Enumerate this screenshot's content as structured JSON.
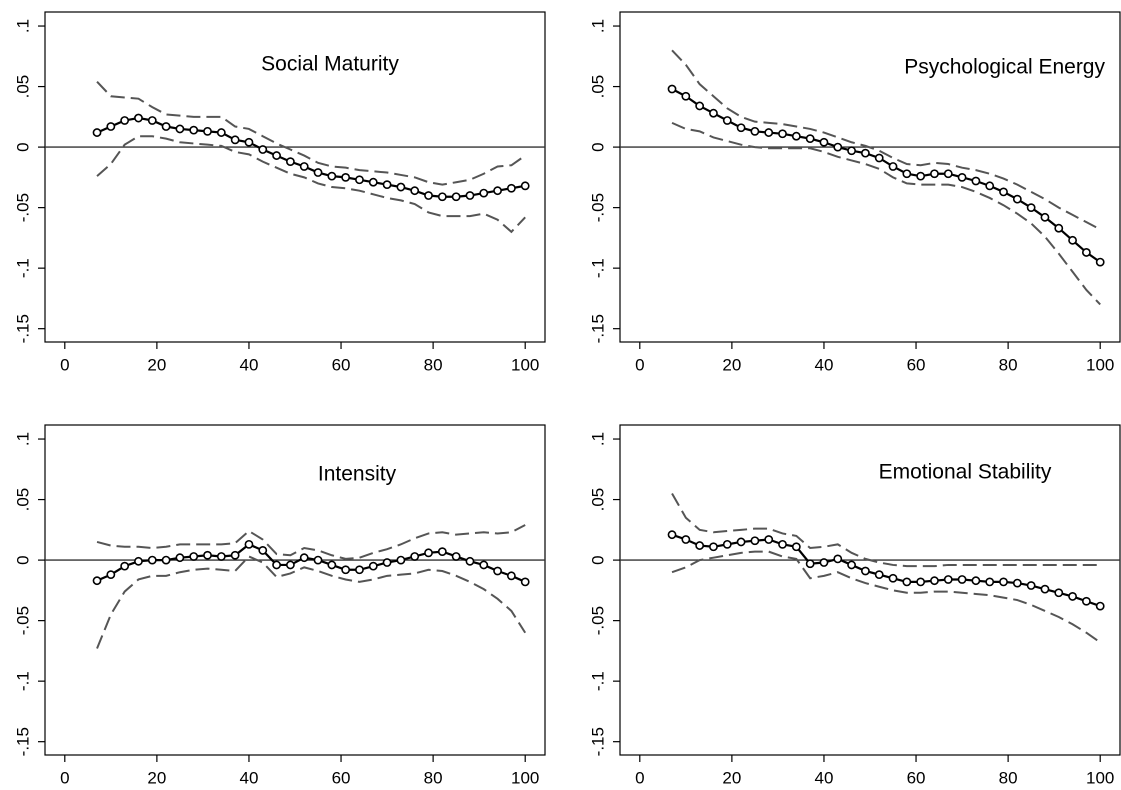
{
  "chart_data": [
    {
      "type": "line",
      "title": "Social Maturity",
      "x": [
        7,
        10,
        13,
        16,
        19,
        22,
        25,
        28,
        31,
        34,
        37,
        40,
        43,
        46,
        49,
        52,
        55,
        58,
        61,
        64,
        67,
        70,
        73,
        76,
        79,
        82,
        85,
        88,
        91,
        94,
        97,
        100
      ],
      "series": [
        {
          "style": "circles",
          "color": "#000000",
          "values": [
            0.012,
            0.017,
            0.022,
            0.024,
            0.022,
            0.017,
            0.015,
            0.014,
            0.013,
            0.012,
            0.006,
            0.004,
            -0.002,
            -0.007,
            -0.012,
            -0.016,
            -0.021,
            -0.024,
            -0.025,
            -0.027,
            -0.029,
            -0.031,
            -0.033,
            -0.036,
            -0.04,
            -0.041,
            -0.041,
            -0.04,
            -0.038,
            -0.036,
            -0.034,
            -0.032
          ]
        },
        {
          "style": "dashed",
          "color": "#555555",
          "values": [
            0.054,
            0.042,
            0.041,
            0.04,
            0.033,
            0.027,
            0.026,
            0.025,
            0.025,
            0.025,
            0.017,
            0.015,
            0.009,
            0.003,
            -0.002,
            -0.007,
            -0.013,
            -0.016,
            -0.017,
            -0.019,
            -0.02,
            -0.021,
            -0.023,
            -0.025,
            -0.029,
            -0.031,
            -0.029,
            -0.027,
            -0.022,
            -0.016,
            -0.015,
            -0.007
          ]
        },
        {
          "style": "dashed",
          "color": "#555555",
          "values": [
            -0.024,
            -0.014,
            0.002,
            0.009,
            0.009,
            0.007,
            0.004,
            0.003,
            0.002,
            0.001,
            -0.004,
            -0.006,
            -0.012,
            -0.017,
            -0.022,
            -0.025,
            -0.03,
            -0.033,
            -0.034,
            -0.036,
            -0.039,
            -0.042,
            -0.044,
            -0.047,
            -0.054,
            -0.057,
            -0.057,
            -0.057,
            -0.055,
            -0.06,
            -0.07,
            -0.058
          ]
        }
      ],
      "refline": 0,
      "xlim": [
        -4.3,
        104.3
      ],
      "ylim": [
        -0.161,
        0.1116
      ],
      "xticks": [
        0,
        20,
        40,
        60,
        80,
        100
      ],
      "yticks": [
        {
          "value": -0.15,
          "label": "-.15"
        },
        {
          "value": -0.1,
          "label": "-.1"
        },
        {
          "value": -0.05,
          "label": "-.05"
        },
        0,
        {
          "value": 0.05,
          "label": ".05"
        },
        {
          "value": 0.1,
          "label": ".1"
        }
      ]
    },
    {
      "type": "line",
      "title": "Psychological Energy",
      "x": [
        7,
        10,
        13,
        16,
        19,
        22,
        25,
        28,
        31,
        34,
        37,
        40,
        43,
        46,
        49,
        52,
        55,
        58,
        61,
        64,
        67,
        70,
        73,
        76,
        79,
        82,
        85,
        88,
        91,
        94,
        97,
        100
      ],
      "series": [
        {
          "style": "circles",
          "color": "#000000",
          "values": [
            0.048,
            0.042,
            0.034,
            0.028,
            0.022,
            0.016,
            0.013,
            0.012,
            0.011,
            0.009,
            0.007,
            0.004,
            0.0,
            -0.003,
            -0.005,
            -0.009,
            -0.016,
            -0.022,
            -0.024,
            -0.022,
            -0.022,
            -0.025,
            -0.028,
            -0.032,
            -0.037,
            -0.043,
            -0.05,
            -0.058,
            -0.067,
            -0.077,
            -0.087,
            -0.095
          ]
        },
        {
          "style": "dashed",
          "color": "#555555",
          "values": [
            0.08,
            0.068,
            0.052,
            0.042,
            0.032,
            0.025,
            0.021,
            0.02,
            0.019,
            0.017,
            0.015,
            0.012,
            0.008,
            0.004,
            0.001,
            -0.003,
            -0.009,
            -0.014,
            -0.015,
            -0.013,
            -0.014,
            -0.017,
            -0.019,
            -0.022,
            -0.026,
            -0.031,
            -0.037,
            -0.043,
            -0.05,
            -0.056,
            -0.062,
            -0.068
          ]
        },
        {
          "style": "dashed",
          "color": "#555555",
          "values": [
            0.02,
            0.015,
            0.013,
            0.008,
            0.005,
            0.002,
            0.0,
            -0.001,
            -0.001,
            -0.001,
            -0.001,
            -0.004,
            -0.008,
            -0.011,
            -0.014,
            -0.018,
            -0.025,
            -0.03,
            -0.031,
            -0.031,
            -0.031,
            -0.033,
            -0.037,
            -0.042,
            -0.048,
            -0.055,
            -0.063,
            -0.074,
            -0.088,
            -0.103,
            -0.118,
            -0.13
          ]
        }
      ],
      "refline": 0,
      "xlim": [
        -4.3,
        104.3
      ],
      "ylim": [
        -0.161,
        0.1116
      ],
      "xticks": [
        0,
        20,
        40,
        60,
        80,
        100
      ],
      "yticks": [
        {
          "value": -0.15,
          "label": "-.15"
        },
        {
          "value": -0.1,
          "label": "-.1"
        },
        {
          "value": -0.05,
          "label": "-.05"
        },
        0,
        {
          "value": 0.05,
          "label": ".05"
        },
        {
          "value": 0.1,
          "label": ".1"
        }
      ]
    },
    {
      "type": "line",
      "title": "Intensity",
      "x": [
        7,
        10,
        13,
        16,
        19,
        22,
        25,
        28,
        31,
        34,
        37,
        40,
        43,
        46,
        49,
        52,
        55,
        58,
        61,
        64,
        67,
        70,
        73,
        76,
        79,
        82,
        85,
        88,
        91,
        94,
        97,
        100
      ],
      "series": [
        {
          "style": "circles",
          "color": "#000000",
          "values": [
            -0.017,
            -0.012,
            -0.005,
            -0.001,
            0.0,
            0.0,
            0.002,
            0.003,
            0.004,
            0.003,
            0.004,
            0.013,
            0.008,
            -0.004,
            -0.004,
            0.002,
            0.0,
            -0.004,
            -0.008,
            -0.008,
            -0.005,
            -0.002,
            0.0,
            0.003,
            0.006,
            0.007,
            0.003,
            -0.001,
            -0.004,
            -0.009,
            -0.013,
            -0.018
          ]
        },
        {
          "style": "dashed",
          "color": "#555555",
          "values": [
            0.015,
            0.012,
            0.011,
            0.011,
            0.01,
            0.011,
            0.013,
            0.013,
            0.013,
            0.013,
            0.014,
            0.024,
            0.017,
            0.005,
            0.004,
            0.01,
            0.008,
            0.004,
            0.001,
            0.002,
            0.006,
            0.009,
            0.013,
            0.018,
            0.022,
            0.023,
            0.021,
            0.022,
            0.023,
            0.022,
            0.023,
            0.029
          ]
        },
        {
          "style": "dashed",
          "color": "#555555",
          "values": [
            -0.073,
            -0.045,
            -0.026,
            -0.016,
            -0.013,
            -0.013,
            -0.01,
            -0.008,
            -0.007,
            -0.008,
            -0.009,
            0.003,
            -0.002,
            -0.014,
            -0.011,
            -0.006,
            -0.009,
            -0.013,
            -0.016,
            -0.018,
            -0.016,
            -0.013,
            -0.012,
            -0.011,
            -0.008,
            -0.009,
            -0.013,
            -0.018,
            -0.024,
            -0.032,
            -0.042,
            -0.06
          ]
        }
      ],
      "refline": 0,
      "xlim": [
        -4.3,
        104.3
      ],
      "ylim": [
        -0.161,
        0.1116
      ],
      "xticks": [
        0,
        20,
        40,
        60,
        80,
        100
      ],
      "yticks": [
        {
          "value": -0.15,
          "label": "-.15"
        },
        {
          "value": -0.1,
          "label": "-.1"
        },
        {
          "value": -0.05,
          "label": "-.05"
        },
        0,
        {
          "value": 0.05,
          "label": ".05"
        },
        {
          "value": 0.1,
          "label": ".1"
        }
      ]
    },
    {
      "type": "line",
      "title": "Emotional Stability",
      "x": [
        7,
        10,
        13,
        16,
        19,
        22,
        25,
        28,
        31,
        34,
        37,
        40,
        43,
        46,
        49,
        52,
        55,
        58,
        61,
        64,
        67,
        70,
        73,
        76,
        79,
        82,
        85,
        88,
        91,
        94,
        97,
        100
      ],
      "series": [
        {
          "style": "circles",
          "color": "#000000",
          "values": [
            0.021,
            0.017,
            0.012,
            0.011,
            0.013,
            0.015,
            0.016,
            0.017,
            0.013,
            0.011,
            -0.003,
            -0.002,
            0.001,
            -0.004,
            -0.009,
            -0.012,
            -0.015,
            -0.018,
            -0.018,
            -0.017,
            -0.016,
            -0.016,
            -0.017,
            -0.018,
            -0.018,
            -0.019,
            -0.021,
            -0.024,
            -0.027,
            -0.03,
            -0.034,
            -0.038
          ]
        },
        {
          "style": "dashed",
          "color": "#555555",
          "values": [
            0.055,
            0.035,
            0.025,
            0.023,
            0.024,
            0.025,
            0.026,
            0.026,
            0.022,
            0.02,
            0.01,
            0.011,
            0.013,
            0.006,
            0.001,
            -0.002,
            -0.004,
            -0.005,
            -0.005,
            -0.005,
            -0.004,
            -0.004,
            -0.004,
            -0.004,
            -0.004,
            -0.004,
            -0.004,
            -0.004,
            -0.004,
            -0.004,
            -0.004,
            -0.004
          ]
        },
        {
          "style": "dashed",
          "color": "#555555",
          "values": [
            -0.01,
            -0.006,
            0.0,
            0.002,
            0.004,
            0.006,
            0.007,
            0.007,
            0.003,
            0.001,
            -0.015,
            -0.013,
            -0.01,
            -0.015,
            -0.019,
            -0.022,
            -0.025,
            -0.027,
            -0.027,
            -0.026,
            -0.026,
            -0.027,
            -0.028,
            -0.029,
            -0.031,
            -0.033,
            -0.037,
            -0.042,
            -0.047,
            -0.053,
            -0.06,
            -0.068
          ]
        }
      ],
      "refline": 0,
      "xlim": [
        -4.3,
        104.3
      ],
      "ylim": [
        -0.161,
        0.1116
      ],
      "xticks": [
        0,
        20,
        40,
        60,
        80,
        100
      ],
      "yticks": [
        {
          "value": -0.15,
          "label": "-.15"
        },
        {
          "value": -0.1,
          "label": "-.1"
        },
        {
          "value": -0.05,
          "label": "-.05"
        },
        0,
        {
          "value": 0.05,
          "label": ".05"
        },
        {
          "value": 0.1,
          "label": ".1"
        }
      ]
    }
  ]
}
